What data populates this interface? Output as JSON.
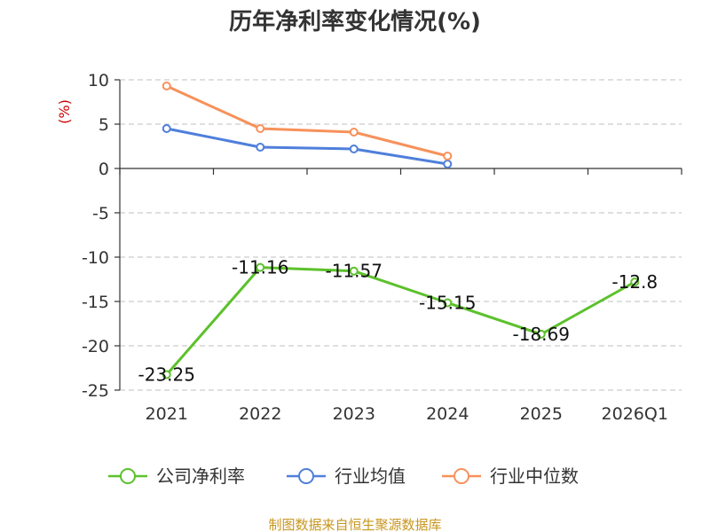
{
  "chart_data": {
    "type": "line",
    "title": "历年净利率变化情况(%)",
    "y_unit": "(%)",
    "categories": [
      "2021",
      "2022",
      "2023",
      "2024",
      "2025",
      "2026Q1"
    ],
    "ylim": [
      -25,
      10
    ],
    "yticks": [
      10,
      5,
      0,
      -5,
      -10,
      -15,
      -20,
      -25
    ],
    "grid": true,
    "legend_position": "bottom",
    "series": [
      {
        "name": "公司净利率",
        "color": "#5cc12b",
        "values": [
          -23.25,
          -11.16,
          -11.57,
          -15.15,
          -18.69,
          -12.8
        ],
        "labels": [
          "-23.25",
          "-11.16",
          "-11.57",
          "-15.15",
          "-18.69",
          "-12.8"
        ]
      },
      {
        "name": "行业均值",
        "color": "#4f7fdb",
        "values": [
          4.5,
          2.4,
          2.2,
          0.5,
          null,
          null
        ]
      },
      {
        "name": "行业中位数",
        "color": "#f7915a",
        "values": [
          9.3,
          4.5,
          4.1,
          1.4,
          null,
          null
        ]
      }
    ]
  },
  "footer": {
    "source": "制图数据来自恒生聚源数据库"
  }
}
